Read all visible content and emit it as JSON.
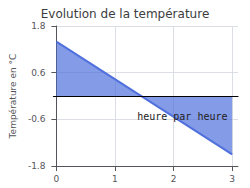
{
  "chart_data": {
    "type": "area",
    "title": "Evolution de la température",
    "ylabel": "Température en °C",
    "x": [
      0,
      3
    ],
    "values": [
      1.4,
      -1.5
    ],
    "xlim": [
      -0.05,
      3.1
    ],
    "ylim": [
      -1.8,
      1.8
    ],
    "xticks": [
      0,
      1,
      2,
      3
    ],
    "yticks": [
      -1.8,
      -0.6,
      0.6,
      1.8
    ],
    "grid": true,
    "annotations": [
      {
        "text": "heure par heure",
        "x": 2.15,
        "y": -0.52
      }
    ]
  }
}
